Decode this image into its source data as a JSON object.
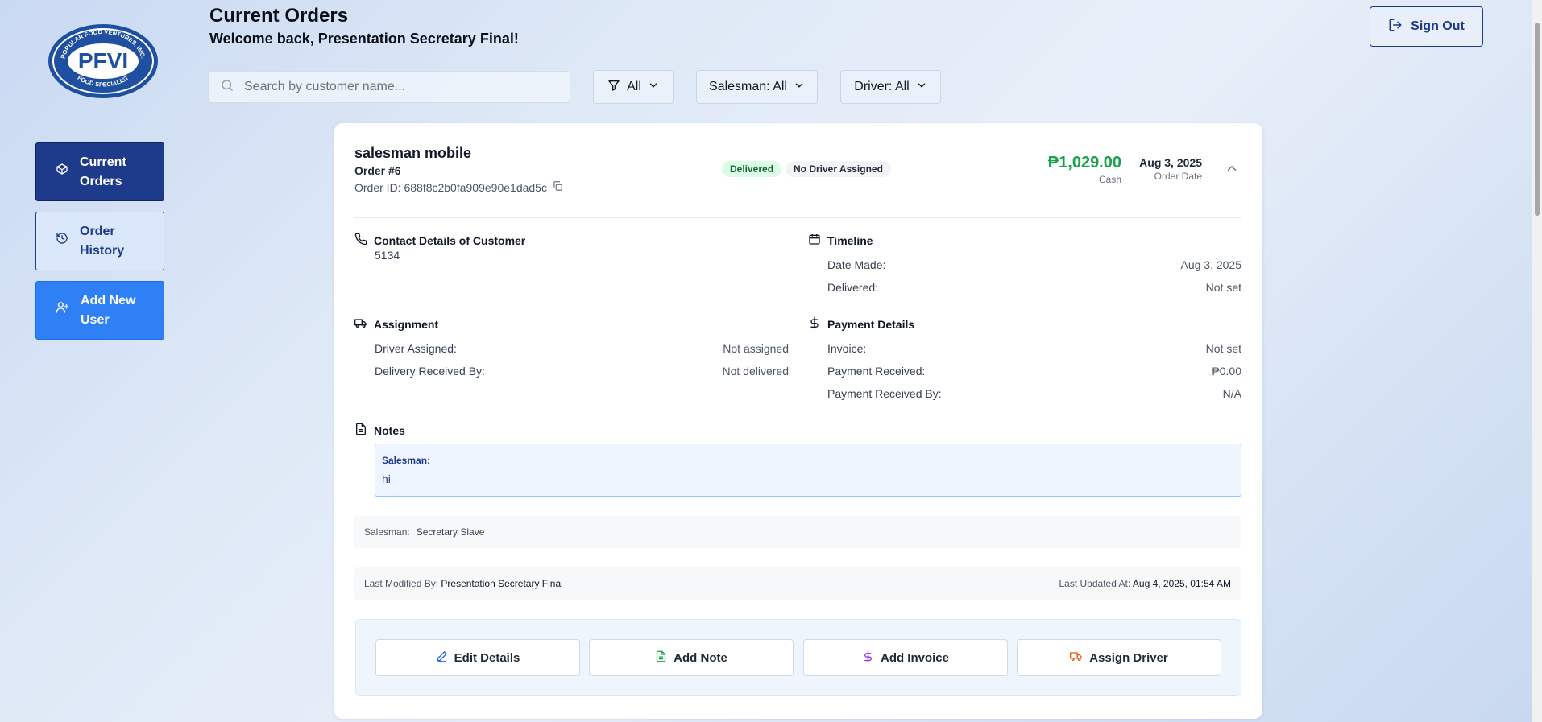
{
  "header": {
    "title": "Current Orders",
    "subtitle": "Welcome back, Presentation Secretary Final!",
    "sign_out": "Sign Out"
  },
  "logo": {
    "top_text": "POPULAR FOOD VENTURES, INC.",
    "main_text": "PFVI",
    "bottom_text": "FOOD SPECIALIST"
  },
  "sidebar": {
    "items": [
      {
        "label": "Current Orders",
        "icon": "box-icon",
        "active": true
      },
      {
        "label": "Order History",
        "icon": "history-icon"
      },
      {
        "label": "Add New User",
        "icon": "user-plus-icon"
      }
    ]
  },
  "filters": {
    "search_placeholder": "Search by customer name...",
    "status": "All",
    "salesman": "Salesman: All",
    "driver": "Driver: All"
  },
  "order": {
    "customer": "salesman mobile",
    "number": "Order #6",
    "id": "Order ID: 688f8c2b0fa909e90e1dad5c",
    "badges": {
      "status": "Delivered",
      "driver": "No Driver Assigned"
    },
    "amount": "₱1,029.00",
    "payment_method": "Cash",
    "date": "Aug 3, 2025",
    "date_label": "Order Date",
    "contact": {
      "title": "Contact Details of Customer",
      "value": "5134"
    },
    "timeline": {
      "title": "Timeline",
      "rows": [
        {
          "label": "Date Made:",
          "value": "Aug 3, 2025"
        },
        {
          "label": "Delivered:",
          "value": "Not set"
        }
      ]
    },
    "assignment": {
      "title": "Assignment",
      "rows": [
        {
          "label": "Driver Assigned:",
          "value": "Not assigned"
        },
        {
          "label": "Delivery Received By:",
          "value": "Not delivered"
        }
      ]
    },
    "payment": {
      "title": "Payment Details",
      "rows": [
        {
          "label": "Invoice:",
          "value": "Not set"
        },
        {
          "label": "Payment Received:",
          "value": "₱0.00"
        },
        {
          "label": "Payment Received By:",
          "value": "N/A"
        }
      ]
    },
    "notes": {
      "title": "Notes",
      "author": "Salesman:",
      "text": "hi"
    },
    "salesman": {
      "label": "Salesman:",
      "value": "Secretary Slave"
    },
    "modified": {
      "by_label": "Last Modified By:",
      "by_value": "Presentation Secretary Final",
      "at_label": "Last Updated At:",
      "at_value": "Aug 4, 2025, 01:54 AM"
    },
    "actions": {
      "edit": "Edit Details",
      "note": "Add Note",
      "invoice": "Add Invoice",
      "driver": "Assign Driver"
    }
  },
  "colors": {
    "primary": "#1e3a8a",
    "accent_blue": "#2f80f5",
    "amount_green": "#16a34a",
    "delivered_bg": "#dcfce7",
    "invoice_purple": "#9333ea",
    "driver_orange": "#ea580c"
  }
}
